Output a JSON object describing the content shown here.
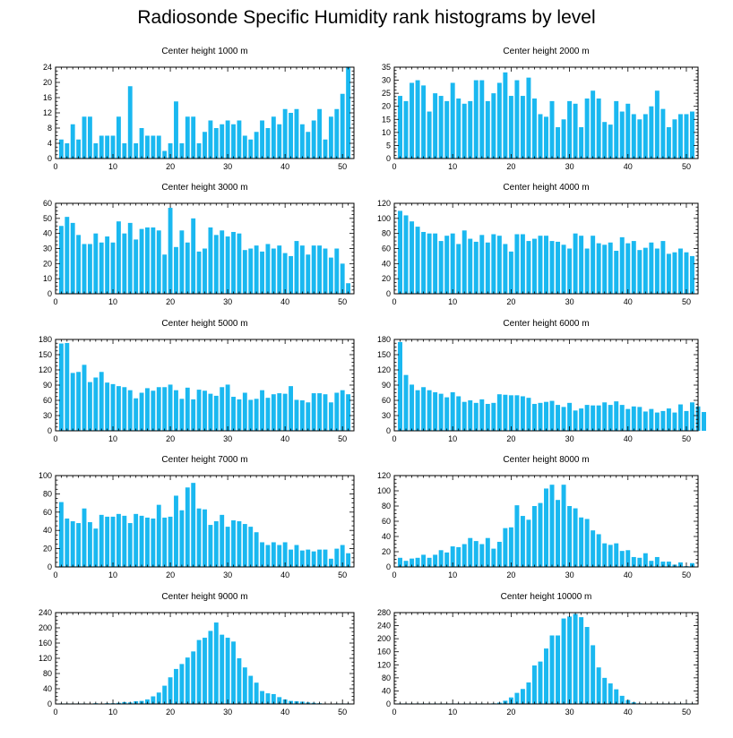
{
  "title": "Radiosonde Specific Humidity rank histograms by level",
  "colors": {
    "bar": "#1ab8f0",
    "axis": "#000000",
    "background": "#ffffff"
  },
  "chart_data": [
    {
      "type": "bar",
      "title": "Center height 1000 m",
      "xlim": [
        0,
        52
      ],
      "ylim": [
        0,
        24
      ],
      "xticks": [
        0,
        10,
        20,
        30,
        40,
        50
      ],
      "yticks": [
        0,
        4,
        8,
        12,
        16,
        20,
        24
      ],
      "values": [
        5,
        4,
        9,
        5,
        11,
        11,
        4,
        6,
        6,
        6,
        11,
        4,
        19,
        4,
        8,
        6,
        6,
        6,
        2,
        4,
        15,
        4,
        11,
        11,
        4,
        7,
        10,
        8,
        9,
        10,
        9,
        10,
        6,
        5,
        7,
        10,
        8,
        11,
        9,
        13,
        12,
        13,
        9,
        7,
        10,
        13,
        5,
        11,
        13,
        17,
        24
      ]
    },
    {
      "type": "bar",
      "title": "Center height 2000 m",
      "xlim": [
        0,
        52
      ],
      "ylim": [
        0,
        35
      ],
      "xticks": [
        0,
        10,
        20,
        30,
        40,
        50
      ],
      "yticks": [
        0,
        5,
        10,
        15,
        20,
        25,
        30,
        35
      ],
      "values": [
        24,
        22,
        29,
        30,
        28,
        18,
        25,
        24,
        22,
        29,
        23,
        21,
        22,
        30,
        30,
        22,
        25,
        29,
        33,
        24,
        30,
        24,
        31,
        23,
        17,
        16,
        22,
        12,
        15,
        22,
        21,
        12,
        23,
        26,
        23,
        14,
        13,
        22,
        18,
        21,
        17,
        15,
        17,
        20,
        26,
        19,
        12,
        15,
        17,
        17,
        18
      ]
    },
    {
      "type": "bar",
      "title": "Center height 3000 m",
      "xlim": [
        0,
        52
      ],
      "ylim": [
        0,
        60
      ],
      "xticks": [
        0,
        10,
        20,
        30,
        40,
        50
      ],
      "yticks": [
        0,
        10,
        20,
        30,
        40,
        50,
        60
      ],
      "values": [
        45,
        51,
        47,
        39,
        33,
        33,
        40,
        34,
        38,
        34,
        48,
        40,
        47,
        36,
        43,
        44,
        44,
        42,
        26,
        57,
        31,
        42,
        34,
        50,
        28,
        30,
        44,
        39,
        42,
        38,
        41,
        40,
        29,
        30,
        32,
        28,
        33,
        30,
        32,
        27,
        25,
        35,
        32,
        26,
        32,
        32,
        30,
        24,
        30,
        20,
        7
      ]
    },
    {
      "type": "bar",
      "title": "Center height 4000 m",
      "xlim": [
        0,
        52
      ],
      "ylim": [
        0,
        120
      ],
      "xticks": [
        0,
        10,
        20,
        30,
        40,
        50
      ],
      "yticks": [
        0,
        20,
        40,
        60,
        80,
        100,
        120
      ],
      "values": [
        110,
        104,
        96,
        89,
        82,
        80,
        80,
        70,
        77,
        80,
        66,
        84,
        73,
        69,
        78,
        68,
        79,
        77,
        66,
        56,
        79,
        79,
        70,
        73,
        77,
        77,
        70,
        69,
        65,
        60,
        80,
        77,
        60,
        77,
        67,
        65,
        68,
        57,
        75,
        67,
        70,
        58,
        61,
        68,
        60,
        70,
        53,
        55,
        60,
        55,
        50
      ]
    },
    {
      "type": "bar",
      "title": "Center height 5000 m",
      "xlim": [
        0,
        52
      ],
      "ylim": [
        0,
        180
      ],
      "xticks": [
        0,
        10,
        20,
        30,
        40,
        50
      ],
      "yticks": [
        0,
        30,
        60,
        90,
        120,
        150,
        180
      ],
      "values": [
        172,
        173,
        114,
        116,
        130,
        96,
        105,
        116,
        95,
        92,
        88,
        86,
        80,
        64,
        75,
        84,
        79,
        86,
        86,
        91,
        80,
        63,
        85,
        62,
        81,
        79,
        73,
        69,
        86,
        91,
        67,
        62,
        75,
        61,
        63,
        80,
        65,
        72,
        74,
        73,
        88,
        61,
        60,
        56,
        74,
        74,
        72,
        56,
        75,
        80,
        72
      ]
    },
    {
      "type": "bar",
      "title": "Center height 6000 m",
      "xlim": [
        0,
        52
      ],
      "ylim": [
        0,
        180
      ],
      "xticks": [
        0,
        10,
        20,
        30,
        40,
        50
      ],
      "yticks": [
        0,
        30,
        60,
        90,
        120,
        150,
        180
      ],
      "values": [
        175,
        110,
        91,
        80,
        86,
        80,
        76,
        73,
        66,
        76,
        68,
        57,
        60,
        55,
        62,
        53,
        55,
        72,
        71,
        70,
        70,
        68,
        65,
        53,
        55,
        57,
        59,
        51,
        47,
        55,
        40,
        44,
        51,
        50,
        50,
        56,
        51,
        58,
        51,
        43,
        48,
        47,
        38,
        43,
        36,
        39,
        44,
        36,
        52,
        39,
        56,
        48,
        37
      ]
    },
    {
      "type": "bar",
      "title": "Center height 7000 m",
      "xlim": [
        0,
        52
      ],
      "ylim": [
        0,
        100
      ],
      "xticks": [
        0,
        10,
        20,
        30,
        40,
        50
      ],
      "yticks": [
        0,
        20,
        40,
        60,
        80,
        100
      ],
      "values": [
        71,
        53,
        50,
        48,
        64,
        49,
        42,
        57,
        55,
        55,
        58,
        56,
        48,
        58,
        56,
        54,
        53,
        68,
        54,
        55,
        78,
        62,
        87,
        92,
        64,
        63,
        46,
        50,
        57,
        44,
        51,
        50,
        47,
        44,
        38,
        27,
        24,
        27,
        24,
        27,
        19,
        24,
        18,
        19,
        17,
        19,
        19,
        9,
        20,
        24,
        15
      ]
    },
    {
      "type": "bar",
      "title": "Center height 8000 m",
      "xlim": [
        0,
        52
      ],
      "ylim": [
        0,
        120
      ],
      "xticks": [
        0,
        10,
        20,
        30,
        40,
        50
      ],
      "yticks": [
        0,
        20,
        40,
        60,
        80,
        100,
        120
      ],
      "values": [
        12,
        8,
        11,
        12,
        16,
        12,
        16,
        22,
        19,
        27,
        26,
        30,
        38,
        34,
        30,
        38,
        24,
        33,
        51,
        52,
        81,
        67,
        62,
        80,
        84,
        103,
        108,
        88,
        108,
        80,
        77,
        65,
        63,
        48,
        43,
        31,
        29,
        31,
        21,
        22,
        13,
        12,
        18,
        8,
        13,
        7,
        7,
        3,
        6,
        1,
        5
      ]
    },
    {
      "type": "bar",
      "title": "Center height 9000 m",
      "xlim": [
        0,
        52
      ],
      "ylim": [
        0,
        240
      ],
      "xticks": [
        0,
        10,
        20,
        30,
        40,
        50
      ],
      "yticks": [
        0,
        40,
        80,
        120,
        160,
        200,
        240
      ],
      "values": [
        0,
        0,
        0,
        0,
        0,
        1,
        2,
        1,
        2,
        2,
        3,
        5,
        4,
        7,
        8,
        12,
        20,
        30,
        48,
        70,
        92,
        105,
        122,
        138,
        168,
        174,
        192,
        214,
        182,
        174,
        164,
        120,
        96,
        74,
        56,
        34,
        28,
        26,
        18,
        12,
        8,
        7,
        6,
        4,
        3,
        2,
        1,
        1,
        0,
        0,
        0
      ]
    },
    {
      "type": "bar",
      "title": "Center height 10000 m",
      "xlim": [
        0,
        52
      ],
      "ylim": [
        0,
        280
      ],
      "xticks": [
        0,
        10,
        20,
        30,
        40,
        50
      ],
      "yticks": [
        0,
        40,
        80,
        120,
        160,
        200,
        240,
        280
      ],
      "yticklabels": [
        "0",
        "40",
        "80",
        "120",
        "160",
        "200",
        "240",
        "280"
      ],
      "values": [
        0,
        0,
        0,
        0,
        0,
        0,
        0,
        0,
        0,
        0,
        0,
        0,
        0,
        0,
        0,
        1,
        2,
        4,
        10,
        20,
        34,
        46,
        66,
        118,
        130,
        170,
        210,
        210,
        262,
        268,
        276,
        266,
        236,
        180,
        112,
        80,
        63,
        45,
        25,
        12,
        5,
        2,
        1,
        0,
        0,
        0,
        0,
        0,
        0,
        0,
        0
      ]
    }
  ]
}
